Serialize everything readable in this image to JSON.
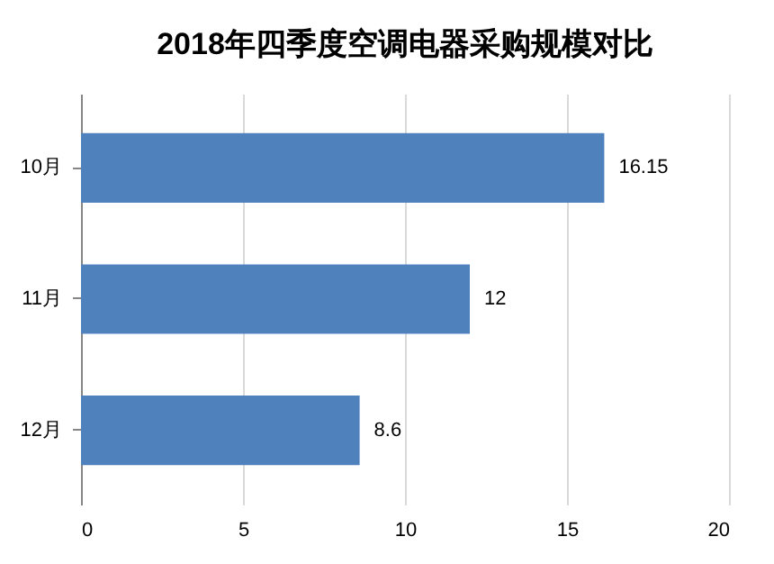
{
  "chart_data": {
    "type": "bar",
    "title": "2018年四季度空调电器采购规模对比",
    "orientation": "horizontal",
    "categories": [
      "10月",
      "11月",
      "12月"
    ],
    "values": [
      16.15,
      12,
      8.6
    ],
    "color": "#4f81bd",
    "xlim": [
      0,
      20
    ],
    "xticks": [
      0,
      5,
      10,
      15,
      20
    ],
    "grid": "x",
    "data_labels": true
  }
}
